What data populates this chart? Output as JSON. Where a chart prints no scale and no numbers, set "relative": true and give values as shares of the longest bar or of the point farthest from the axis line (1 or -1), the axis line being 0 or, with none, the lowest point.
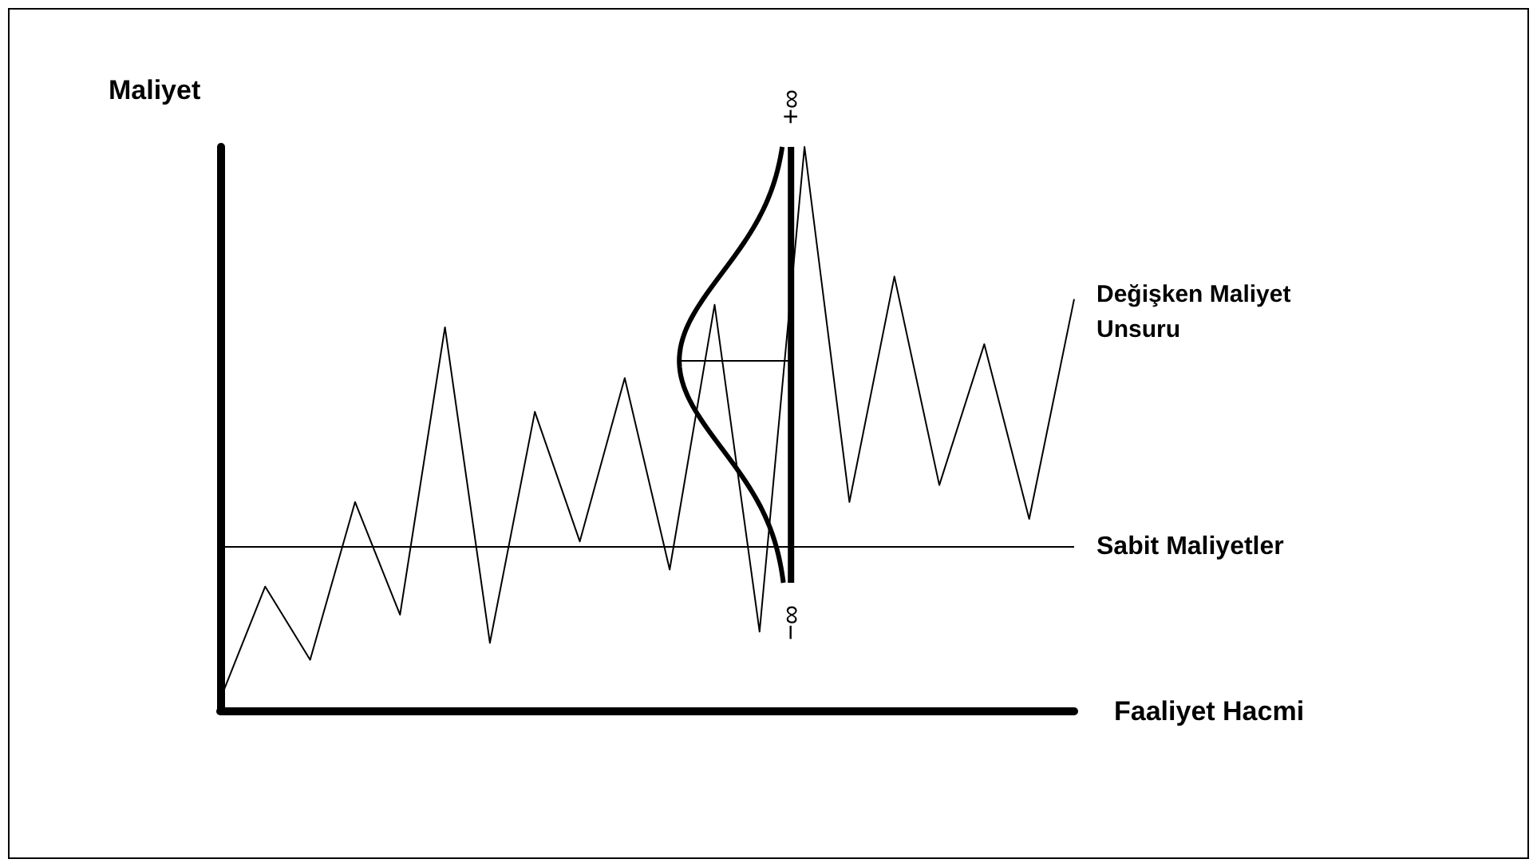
{
  "chart_data": {
    "type": "line",
    "relative": true,
    "xlabel": "Faaliyet Hacmi",
    "ylabel": "Maliyet",
    "categories": [
      null,
      null,
      null,
      null,
      null,
      null,
      null,
      null,
      null,
      null,
      null,
      null,
      null,
      null,
      null,
      null,
      null,
      null,
      null,
      null
    ],
    "series": [
      {
        "name": "Değişken Maliyet Unsuru",
        "color": "#000000",
        "values": [
          0.02,
          0.22,
          0.09,
          0.37,
          0.17,
          0.68,
          0.12,
          0.53,
          0.3,
          0.59,
          0.25,
          0.72,
          0.14,
          1.0,
          0.37,
          0.77,
          0.4,
          0.65,
          0.34,
          0.73
        ]
      }
    ],
    "ref_lines": [
      {
        "axis": "y",
        "value": 0.29,
        "label": "Sabit Maliyetler",
        "color": "#000000"
      }
    ],
    "annotations": [
      "+∞",
      "−∞"
    ],
    "marker": "none"
  }
}
